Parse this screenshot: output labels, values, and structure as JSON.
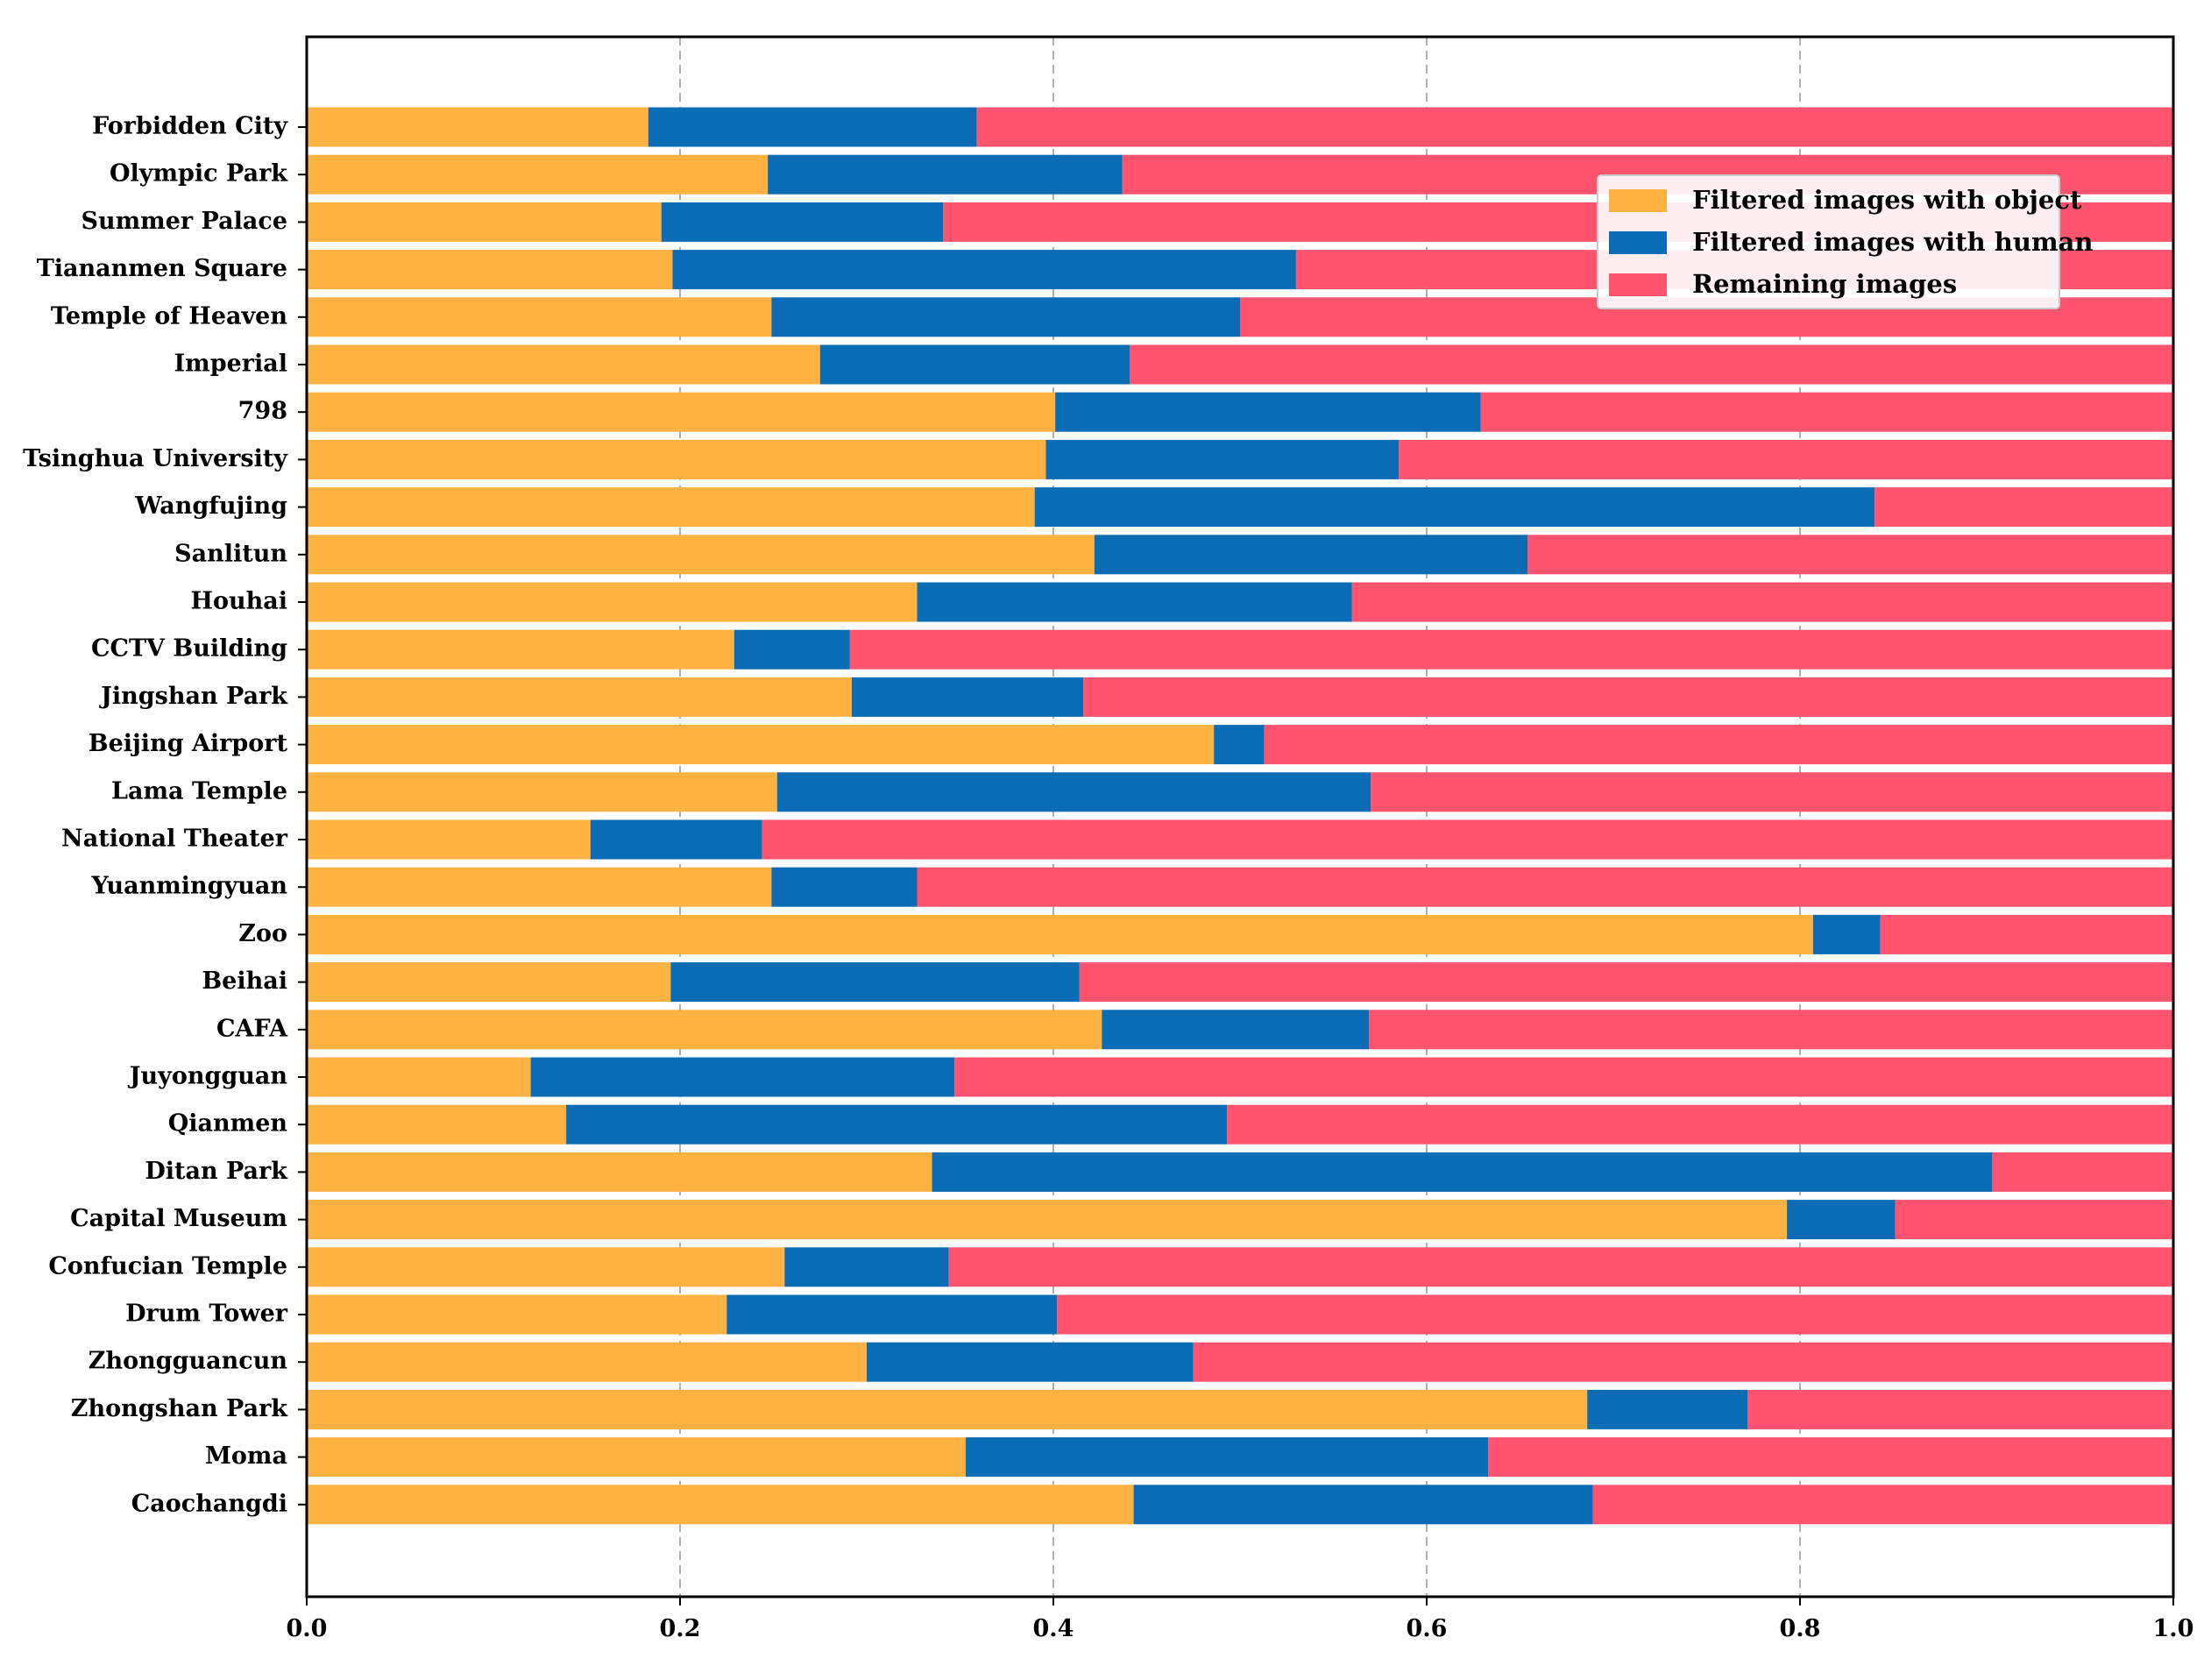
{
  "chart_data": {
    "type": "bar",
    "orientation": "horizontal",
    "stacked": true,
    "title": "",
    "xlabel": "",
    "ylabel": "",
    "xlim": [
      0.0,
      1.0
    ],
    "xticks": [
      "0.0",
      "0.2",
      "0.4",
      "0.6",
      "0.8",
      "1.0"
    ],
    "grid": "vertical dashed",
    "legend_position": "top-right",
    "categories": [
      "Forbidden City",
      "Olympic Park",
      "Summer Palace",
      "Tiananmen Square",
      "Temple of Heaven",
      "Imperial",
      "798",
      "Tsinghua University",
      "Wangfujing",
      "Sanlitun",
      "Houhai",
      "CCTV Building",
      "Jingshan Park",
      "Beijing Airport",
      "Lama Temple",
      "National Theater",
      "Yuanmingyuan",
      "Zoo",
      "Beihai",
      "CAFA",
      "Juyongguan",
      "Qianmen",
      "Ditan Park",
      "Capital Museum",
      "Confucian Temple",
      "Drum Tower",
      "Zhongguancun",
      "Zhongshan Park",
      "Moma",
      "Caochangdi"
    ],
    "series": [
      {
        "name": "Filtered images with object",
        "color": "#FFB142",
        "values": [
          0.183,
          0.247,
          0.19,
          0.196,
          0.249,
          0.275,
          0.401,
          0.396,
          0.39,
          0.422,
          0.327,
          0.229,
          0.292,
          0.486,
          0.252,
          0.152,
          0.249,
          0.807,
          0.195,
          0.426,
          0.12,
          0.139,
          0.335,
          0.793,
          0.256,
          0.225,
          0.3,
          0.686,
          0.353,
          0.443
        ]
      },
      {
        "name": "Filtered images with human",
        "color": "#0A6CB5",
        "values": [
          0.176,
          0.19,
          0.151,
          0.334,
          0.251,
          0.166,
          0.228,
          0.189,
          0.45,
          0.232,
          0.233,
          0.062,
          0.124,
          0.027,
          0.318,
          0.092,
          0.078,
          0.036,
          0.219,
          0.143,
          0.227,
          0.354,
          0.568,
          0.058,
          0.088,
          0.177,
          0.175,
          0.086,
          0.28,
          0.246
        ]
      },
      {
        "name": "Remaining images",
        "color": "#FF5370",
        "values": [
          0.641,
          0.563,
          0.659,
          0.47,
          0.5,
          0.559,
          0.371,
          0.415,
          0.16,
          0.346,
          0.44,
          0.709,
          0.584,
          0.487,
          0.43,
          0.756,
          0.673,
          0.157,
          0.586,
          0.431,
          0.653,
          0.507,
          0.097,
          0.149,
          0.656,
          0.598,
          0.525,
          0.228,
          0.367,
          0.311
        ]
      }
    ]
  }
}
